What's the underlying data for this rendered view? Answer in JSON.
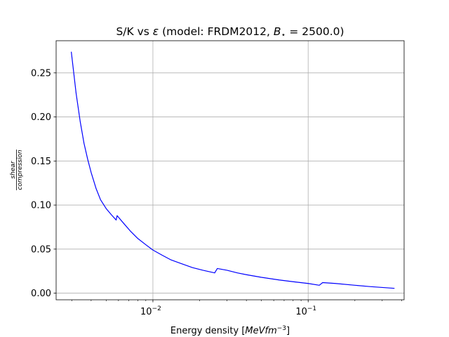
{
  "chart_data": {
    "type": "line",
    "title": "S/K vs ε (model: FRDM2012, B⋆ = 2500.0)",
    "title_parts": {
      "pre": "S/K vs ",
      "eps": "ε",
      "mid": " (model: FRDM2012, ",
      "b": "B",
      "sub": "⋆",
      "post": " = 2500.0)"
    },
    "xlabel": "Energy density [MeVfm⁻³]",
    "xlabel_parts": {
      "pre": "Energy density [",
      "unit": "MeVfm",
      "exp": "−3",
      "post": "]"
    },
    "ylabel": {
      "numerator": "shear",
      "denominator": "compression"
    },
    "x_scale": "log",
    "xlim": [
      0.00238,
      0.415
    ],
    "ylim": [
      -0.0075,
      0.2865
    ],
    "grid": true,
    "x_major_ticks": [
      {
        "value": 0.01,
        "base": "10",
        "exp": "−2"
      },
      {
        "value": 0.1,
        "base": "10",
        "exp": "−1"
      }
    ],
    "x_minor_ticks": [
      0.003,
      0.004,
      0.005,
      0.006,
      0.007,
      0.008,
      0.009,
      0.02,
      0.03,
      0.04,
      0.05,
      0.06,
      0.07,
      0.08,
      0.09,
      0.2,
      0.3,
      0.4
    ],
    "y_ticks": [
      {
        "value": 0.0,
        "label": "0.00"
      },
      {
        "value": 0.05,
        "label": "0.05"
      },
      {
        "value": 0.1,
        "label": "0.10"
      },
      {
        "value": 0.15,
        "label": "0.15"
      },
      {
        "value": 0.2,
        "label": "0.20"
      },
      {
        "value": 0.25,
        "label": "0.25"
      }
    ],
    "series": [
      {
        "color": "#0000ff",
        "points": [
          [
            0.00298,
            0.274
          ],
          [
            0.0031,
            0.248
          ],
          [
            0.0032,
            0.227
          ],
          [
            0.0034,
            0.195
          ],
          [
            0.0036,
            0.17
          ],
          [
            0.0038,
            0.152
          ],
          [
            0.004,
            0.137
          ],
          [
            0.0043,
            0.119
          ],
          [
            0.0046,
            0.106
          ],
          [
            0.005,
            0.096
          ],
          [
            0.0054,
            0.089
          ],
          [
            0.0058,
            0.083
          ],
          [
            0.00588,
            0.088
          ],
          [
            0.0065,
            0.079
          ],
          [
            0.0072,
            0.07
          ],
          [
            0.008,
            0.062
          ],
          [
            0.009,
            0.055
          ],
          [
            0.01,
            0.049
          ],
          [
            0.0115,
            0.043
          ],
          [
            0.013,
            0.038
          ],
          [
            0.015,
            0.034
          ],
          [
            0.018,
            0.029
          ],
          [
            0.021,
            0.026
          ],
          [
            0.025,
            0.023
          ],
          [
            0.026,
            0.028
          ],
          [
            0.03,
            0.026
          ],
          [
            0.035,
            0.023
          ],
          [
            0.04,
            0.021
          ],
          [
            0.05,
            0.018
          ],
          [
            0.065,
            0.015
          ],
          [
            0.08,
            0.013
          ],
          [
            0.1,
            0.011
          ],
          [
            0.118,
            0.009
          ],
          [
            0.124,
            0.012
          ],
          [
            0.15,
            0.011
          ],
          [
            0.2,
            0.009
          ],
          [
            0.25,
            0.0075
          ],
          [
            0.3,
            0.0065
          ],
          [
            0.36,
            0.0055
          ]
        ]
      }
    ]
  }
}
